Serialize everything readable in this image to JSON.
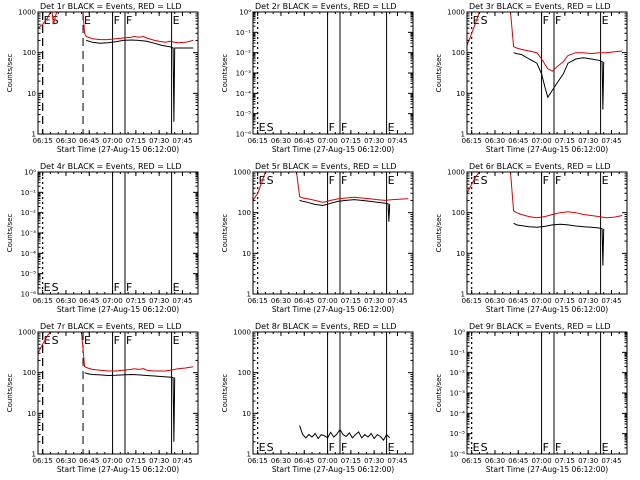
{
  "colors": {
    "events": "#000000",
    "lld": "#dd0000",
    "axis": "#000000"
  },
  "common": {
    "x_ticks": [
      "06:15",
      "06:30",
      "06:45",
      "07:00",
      "07:15",
      "07:30",
      "07:45"
    ],
    "x_label": "Start Time (27-Aug-15 06:12:00)",
    "y_label": "Counts/sec",
    "y_ticks": [
      "10⁰",
      "10⁻¹",
      "10⁻²",
      "10⁻³",
      "10⁻⁴",
      "10⁻⁵",
      "10⁻⁶"
    ]
  },
  "chart_data": [
    {
      "type": "line",
      "title": "Det 1r BLACK = Events, RED = LLD",
      "xlabel": "Start Time (27-Aug-15 06:12:00)",
      "ylabel": "Counts/sec",
      "x_range_minutes": [
        0,
        103
      ],
      "y_scale": "log",
      "ylim": [
        1,
        1000
      ],
      "y_tick_labels": [
        "1",
        "10",
        "100",
        "1000"
      ],
      "markers": [
        {
          "label": "E",
          "minute": 3,
          "style": "dashed"
        },
        {
          "label": "S",
          "minute": 3,
          "style": "dashed"
        },
        {
          "label": "E",
          "minute": 29,
          "style": "dashed"
        },
        {
          "label": "F",
          "minute": 48,
          "style": "solid"
        },
        {
          "label": "F",
          "minute": 56,
          "style": "solid"
        },
        {
          "label": "E",
          "minute": 86,
          "style": "solid"
        }
      ],
      "series": [
        {
          "name": "LLD",
          "color": "red",
          "x": [
            0,
            3,
            6,
            8,
            9,
            10,
            12,
            16,
            20,
            24,
            28,
            29,
            30,
            31,
            35,
            40,
            45,
            50,
            55,
            60,
            62,
            65,
            68,
            70,
            75,
            78,
            82,
            85,
            88,
            90,
            95,
            100
          ],
          "y": [
            400,
            500,
            700,
            1000,
            1000,
            500,
            1000,
            1000,
            1000,
            1000,
            1000,
            1000,
            300,
            250,
            220,
            210,
            210,
            220,
            230,
            240,
            250,
            240,
            250,
            230,
            200,
            190,
            180,
            190,
            180,
            175,
            180,
            200
          ]
        },
        {
          "name": "Events",
          "color": "black",
          "x": [
            31,
            35,
            40,
            45,
            50,
            55,
            60,
            65,
            70,
            75,
            80,
            85,
            87,
            87.5,
            88,
            100
          ],
          "y": [
            200,
            180,
            170,
            175,
            185,
            200,
            205,
            200,
            190,
            170,
            150,
            140,
            130,
            2,
            130,
            130
          ]
        }
      ]
    },
    {
      "type": "line",
      "title": "Det 2r BLACK = Events, RED = LLD",
      "xlabel": "Start Time (27-Aug-15 06:12:00)",
      "ylabel": "Counts/sec",
      "y_scale": "log",
      "ylim": [
        1e-06,
        1
      ],
      "y_tick_labels": [
        "10⁰",
        "10⁻¹",
        "10⁻²",
        "10⁻³",
        "10⁻⁴",
        "10⁻⁵",
        "10⁻⁶"
      ],
      "markers": [
        {
          "label": "E",
          "minute": 3,
          "style": "dotted"
        },
        {
          "label": "S",
          "minute": 3,
          "style": "dotted"
        },
        {
          "label": "F",
          "minute": 48,
          "style": "solid"
        },
        {
          "label": "F",
          "minute": 56,
          "style": "solid"
        },
        {
          "label": "E",
          "minute": 86,
          "style": "solid"
        }
      ],
      "series": []
    },
    {
      "type": "line",
      "title": "Det 3r BLACK = Events, RED = LLD",
      "xlabel": "Start Time (27-Aug-15 06:12:00)",
      "ylabel": "Counts/sec",
      "y_scale": "log",
      "ylim": [
        1,
        1000
      ],
      "y_tick_labels": [
        "1",
        "10",
        "100",
        "1000"
      ],
      "markers": [
        {
          "label": "E",
          "minute": 3,
          "style": "dotted"
        },
        {
          "label": "S",
          "minute": 3,
          "style": "dotted"
        },
        {
          "label": "F",
          "minute": 48,
          "style": "solid"
        },
        {
          "label": "F",
          "minute": 56,
          "style": "solid"
        },
        {
          "label": "E",
          "minute": 86,
          "style": "solid"
        }
      ],
      "series": [
        {
          "name": "LLD",
          "color": "red",
          "x": [
            0,
            3,
            6,
            8,
            10,
            12,
            18,
            22,
            28,
            30,
            32,
            35,
            40,
            45,
            48,
            52,
            55,
            58,
            62,
            65,
            70,
            75,
            80,
            85,
            90,
            95,
            100
          ],
          "y": [
            150,
            300,
            600,
            1000,
            1000,
            1000,
            1000,
            1000,
            1000,
            140,
            130,
            120,
            110,
            100,
            70,
            40,
            35,
            45,
            60,
            85,
            100,
            100,
            95,
            100,
            100,
            105,
            110
          ]
        },
        {
          "name": "Events",
          "color": "black",
          "x": [
            30,
            32,
            35,
            40,
            45,
            48,
            50,
            52,
            55,
            58,
            62,
            65,
            70,
            75,
            80,
            85,
            87,
            87.5,
            88
          ],
          "y": [
            100,
            95,
            90,
            70,
            55,
            30,
            15,
            8,
            12,
            18,
            30,
            55,
            70,
            75,
            70,
            65,
            60,
            4,
            60
          ]
        }
      ]
    },
    {
      "type": "line",
      "title": "Det 4r BLACK = Events, RED = LLD",
      "xlabel": "Start Time (27-Aug-15 06:12:00)",
      "ylabel": "Counts/sec",
      "y_scale": "log",
      "ylim": [
        1e-06,
        1
      ],
      "y_tick_labels": [
        "10⁰",
        "10⁻¹",
        "10⁻²",
        "10⁻³",
        "10⁻⁴",
        "10⁻⁵",
        "10⁻⁶"
      ],
      "markers": [
        {
          "label": "E",
          "minute": 3,
          "style": "dotted"
        },
        {
          "label": "S",
          "minute": 3,
          "style": "dotted"
        },
        {
          "label": "F",
          "minute": 48,
          "style": "solid"
        },
        {
          "label": "F",
          "minute": 56,
          "style": "solid"
        },
        {
          "label": "E",
          "minute": 86,
          "style": "solid"
        }
      ],
      "series": []
    },
    {
      "type": "line",
      "title": "Det 5r BLACK = Events, RED = LLD",
      "xlabel": "Start Time (27-Aug-15 06:12:00)",
      "ylabel": "Counts/sec",
      "y_scale": "log",
      "ylim": [
        1,
        1000
      ],
      "y_tick_labels": [
        "1",
        "10",
        "100",
        "1000"
      ],
      "markers": [
        {
          "label": "E",
          "minute": 3,
          "style": "dotted"
        },
        {
          "label": "S",
          "minute": 3,
          "style": "dotted"
        },
        {
          "label": "F",
          "minute": 48,
          "style": "solid"
        },
        {
          "label": "F",
          "minute": 56,
          "style": "solid"
        },
        {
          "label": "E",
          "minute": 86,
          "style": "solid"
        }
      ],
      "series": [
        {
          "name": "LLD",
          "color": "red",
          "x": [
            0,
            3,
            6,
            8,
            10,
            12,
            18,
            22,
            28,
            30,
            32,
            35,
            40,
            45,
            50,
            55,
            60,
            65,
            70,
            75,
            80,
            85,
            90,
            95,
            100
          ],
          "y": [
            200,
            300,
            600,
            1000,
            1000,
            1000,
            1000,
            1000,
            1000,
            250,
            230,
            220,
            200,
            180,
            200,
            220,
            230,
            240,
            230,
            220,
            210,
            200,
            210,
            215,
            220
          ]
        },
        {
          "name": "Events",
          "color": "black",
          "x": [
            30,
            32,
            35,
            40,
            45,
            50,
            55,
            60,
            65,
            70,
            75,
            80,
            85,
            87,
            87.5,
            88
          ],
          "y": [
            200,
            190,
            180,
            160,
            150,
            170,
            190,
            200,
            210,
            200,
            190,
            180,
            170,
            165,
            60,
            165
          ]
        }
      ]
    },
    {
      "type": "line",
      "title": "Det 6r BLACK = Events, RED = LLD",
      "xlabel": "Start Time (27-Aug-15 06:12:00)",
      "ylabel": "Counts/sec",
      "y_scale": "log",
      "ylim": [
        1,
        1000
      ],
      "y_tick_labels": [
        "1",
        "10",
        "100",
        "1000"
      ],
      "markers": [
        {
          "label": "E",
          "minute": 3,
          "style": "dotted"
        },
        {
          "label": "S",
          "minute": 3,
          "style": "dotted"
        },
        {
          "label": "F",
          "minute": 48,
          "style": "solid"
        },
        {
          "label": "F",
          "minute": 56,
          "style": "solid"
        },
        {
          "label": "E",
          "minute": 86,
          "style": "solid"
        }
      ],
      "series": [
        {
          "name": "LLD",
          "color": "red",
          "x": [
            0,
            3,
            6,
            8,
            10,
            12,
            18,
            22,
            28,
            30,
            32,
            35,
            40,
            45,
            50,
            55,
            60,
            65,
            70,
            75,
            80,
            85,
            90,
            95,
            100
          ],
          "y": [
            300,
            500,
            800,
            1000,
            1000,
            1000,
            1000,
            1000,
            1000,
            110,
            100,
            90,
            80,
            75,
            80,
            90,
            100,
            105,
            100,
            90,
            85,
            80,
            75,
            78,
            85
          ]
        },
        {
          "name": "Events",
          "color": "black",
          "x": [
            30,
            32,
            35,
            40,
            45,
            50,
            55,
            60,
            65,
            70,
            75,
            80,
            85,
            87,
            87.5,
            88
          ],
          "y": [
            55,
            50,
            48,
            45,
            44,
            46,
            50,
            52,
            50,
            47,
            45,
            44,
            42,
            40,
            5,
            40
          ]
        }
      ]
    },
    {
      "type": "line",
      "title": "Det 7r BLACK = Events, RED = LLD",
      "xlabel": "Start Time (27-Aug-15 06:12:00)",
      "ylabel": "Counts/sec",
      "y_scale": "log",
      "ylim": [
        1,
        1000
      ],
      "y_tick_labels": [
        "1",
        "10",
        "100",
        "1000"
      ],
      "markers": [
        {
          "label": "E",
          "minute": 3,
          "style": "dashed"
        },
        {
          "label": "S",
          "minute": 3,
          "style": "dashed"
        },
        {
          "label": "E",
          "minute": 29,
          "style": "dashed"
        },
        {
          "label": "F",
          "minute": 48,
          "style": "solid"
        },
        {
          "label": "F",
          "minute": 56,
          "style": "solid"
        },
        {
          "label": "E",
          "minute": 86,
          "style": "solid"
        }
      ],
      "series": [
        {
          "name": "LLD",
          "color": "red",
          "x": [
            0,
            3,
            6,
            8,
            10,
            12,
            18,
            22,
            28,
            30,
            32,
            35,
            40,
            45,
            50,
            55,
            60,
            62,
            65,
            68,
            70,
            75,
            78,
            82,
            85,
            88,
            90,
            95,
            100
          ],
          "y": [
            300,
            500,
            800,
            1000,
            1000,
            1000,
            1000,
            1000,
            1000,
            140,
            130,
            120,
            115,
            110,
            110,
            115,
            120,
            125,
            120,
            125,
            115,
            110,
            110,
            110,
            115,
            120,
            125,
            130,
            140
          ]
        },
        {
          "name": "Events",
          "color": "black",
          "x": [
            30,
            32,
            35,
            40,
            45,
            50,
            55,
            60,
            65,
            70,
            75,
            80,
            85,
            87,
            87.5,
            88
          ],
          "y": [
            100,
            95,
            90,
            88,
            85,
            86,
            88,
            90,
            88,
            85,
            83,
            80,
            78,
            76,
            2,
            76
          ]
        }
      ]
    },
    {
      "type": "line",
      "title": "Det 8r BLACK = Events, RED = LLD",
      "xlabel": "Start Time (27-Aug-15 06:12:00)",
      "ylabel": "Counts/sec",
      "y_scale": "log",
      "ylim": [
        1,
        1000
      ],
      "y_tick_labels": [
        "1",
        "10",
        "100",
        "1000"
      ],
      "markers": [
        {
          "label": "E",
          "minute": 3,
          "style": "dotted"
        },
        {
          "label": "S",
          "minute": 3,
          "style": "dotted"
        },
        {
          "label": "F",
          "minute": 48,
          "style": "solid"
        },
        {
          "label": "F",
          "minute": 56,
          "style": "solid"
        },
        {
          "label": "E",
          "minute": 86,
          "style": "solid"
        }
      ],
      "series": [
        {
          "name": "Events",
          "color": "black",
          "x": [
            30,
            32,
            34,
            36,
            38,
            40,
            42,
            44,
            46,
            48,
            50,
            52,
            54,
            56,
            58,
            60,
            62,
            64,
            66,
            68,
            70,
            72,
            74,
            76,
            78,
            80,
            82,
            84,
            86,
            88
          ],
          "y": [
            5,
            3,
            2.5,
            3,
            2.6,
            3.2,
            2.4,
            3,
            2.8,
            2.5,
            3.4,
            2.6,
            3.1,
            4,
            3,
            2.7,
            3.3,
            2.5,
            3,
            3.5,
            2.5,
            3,
            2.6,
            3.2,
            2.4,
            3,
            2.7,
            2.2,
            3,
            2.5
          ]
        }
      ]
    },
    {
      "type": "line",
      "title": "Det 9r BLACK = Events, RED = LLD",
      "xlabel": "Start Time (27-Aug-15 06:12:00)",
      "ylabel": "Counts/sec",
      "y_scale": "log",
      "ylim": [
        1e-06,
        1
      ],
      "y_tick_labels": [
        "10⁰",
        "10⁻¹",
        "10⁻²",
        "10⁻³",
        "10⁻⁴",
        "10⁻⁵",
        "10⁻⁶"
      ],
      "markers": [
        {
          "label": "E",
          "minute": 3,
          "style": "dotted"
        },
        {
          "label": "S",
          "minute": 3,
          "style": "dotted"
        },
        {
          "label": "F",
          "minute": 48,
          "style": "solid"
        },
        {
          "label": "F",
          "minute": 56,
          "style": "solid"
        },
        {
          "label": "E",
          "minute": 86,
          "style": "solid"
        }
      ],
      "series": []
    }
  ]
}
